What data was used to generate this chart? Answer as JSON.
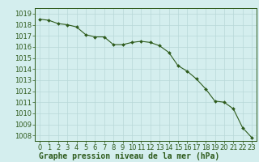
{
  "x": [
    0,
    1,
    2,
    3,
    4,
    5,
    6,
    7,
    8,
    9,
    10,
    11,
    12,
    13,
    14,
    15,
    16,
    17,
    18,
    19,
    20,
    21,
    22,
    23
  ],
  "y": [
    1018.5,
    1018.4,
    1018.1,
    1018.0,
    1017.8,
    1017.1,
    1016.9,
    1016.9,
    1016.2,
    1016.2,
    1016.4,
    1016.5,
    1016.4,
    1016.1,
    1015.5,
    1014.3,
    1013.8,
    1013.1,
    1012.2,
    1011.1,
    1011.0,
    1010.4,
    1008.7,
    1007.8
  ],
  "ylim": [
    1007.5,
    1019.5
  ],
  "xlim": [
    -0.5,
    23.5
  ],
  "yticks": [
    1008,
    1009,
    1010,
    1011,
    1012,
    1013,
    1014,
    1015,
    1016,
    1017,
    1018,
    1019
  ],
  "xticks": [
    0,
    1,
    2,
    3,
    4,
    5,
    6,
    7,
    8,
    9,
    10,
    11,
    12,
    13,
    14,
    15,
    16,
    17,
    18,
    19,
    20,
    21,
    22,
    23
  ],
  "line_color": "#2d5a1b",
  "marker_color": "#2d5a1b",
  "bg_color": "#d4eeee",
  "grid_color": "#b8d8d8",
  "xlabel": "Graphe pression niveau de la mer (hPa)",
  "tick_label_color": "#2d5a1b",
  "xlabel_color": "#2d5a1b",
  "xlabel_fontsize": 7.0,
  "tick_fontsize": 6.0
}
